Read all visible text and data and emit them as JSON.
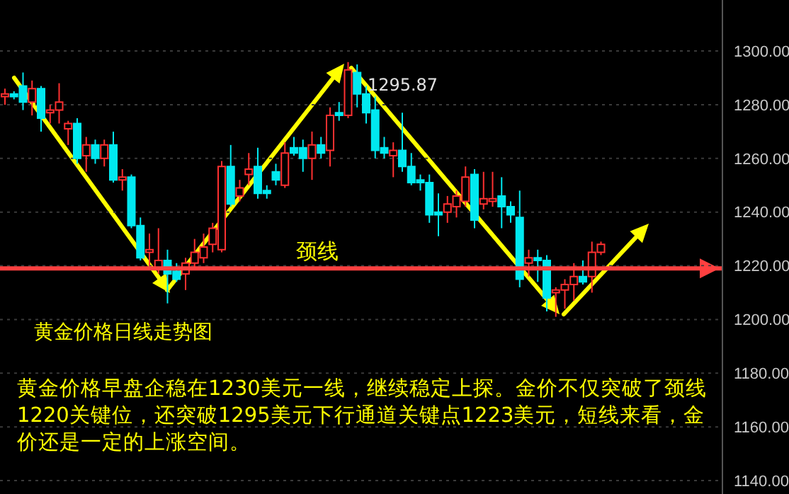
{
  "chart_data": {
    "type": "candlestick",
    "title": "黄金价格日线走势图",
    "annotations": [
      "1295.87",
      "黄金价格早盘企稳在1230美元一线，继续稳定上探。金价不仅突破了颈线1220关键位，还突破1295美元下行通道关键点1223美元，短线来看，金价还是一定的上涨空间。"
    ],
    "categories": [
      null,
      null,
      null,
      null,
      null,
      null,
      null,
      null,
      null,
      null,
      null,
      null,
      null,
      null,
      null,
      null,
      null,
      null,
      null,
      null,
      null,
      null,
      null,
      null,
      null,
      null,
      null,
      null,
      null,
      null,
      null,
      null,
      null,
      null,
      null,
      null,
      null,
      null,
      null,
      null,
      null,
      null,
      null,
      null,
      null,
      null,
      null,
      null,
      null,
      null,
      null,
      null,
      null,
      null,
      null,
      null,
      null,
      null,
      null,
      null,
      null,
      null,
      null,
      null,
      null,
      null,
      null,
      null,
      null,
      null,
      null,
      null,
      null,
      null,
      null,
      null,
      null,
      null,
      null,
      null
    ],
    "ohlc": [
      [
        1283,
        1286,
        1280,
        1284
      ],
      [
        1284,
        1285,
        1282,
        1283
      ],
      [
        1287,
        1292,
        1278,
        1281
      ],
      [
        1281,
        1289,
        1276,
        1286
      ],
      [
        1286,
        1287,
        1270,
        1275
      ],
      [
        1277,
        1280,
        1273,
        1278
      ],
      [
        1278,
        1288,
        1273,
        1281
      ],
      [
        1271,
        1274,
        1265,
        1273
      ],
      [
        1273,
        1275,
        1258,
        1260
      ],
      [
        1261,
        1268,
        1255,
        1265
      ],
      [
        1265,
        1267,
        1258,
        1260
      ],
      [
        1260,
        1267,
        1257,
        1265
      ],
      [
        1265,
        1270,
        1251,
        1252
      ],
      [
        1252,
        1256,
        1248,
        1253
      ],
      [
        1253,
        1254,
        1234,
        1235
      ],
      [
        1235,
        1238,
        1222,
        1223
      ],
      [
        1225,
        1232,
        1220,
        1226
      ],
      [
        1219,
        1234,
        1217,
        1222
      ],
      [
        1222,
        1226,
        1206,
        1217
      ],
      [
        1218,
        1221,
        1214,
        1215
      ],
      [
        1217,
        1223,
        1211,
        1221
      ],
      [
        1221,
        1230,
        1219,
        1225
      ],
      [
        1223,
        1232,
        1221,
        1227
      ],
      [
        1228,
        1236,
        1225,
        1234
      ],
      [
        1226,
        1259,
        1225,
        1257
      ],
      [
        1257,
        1265,
        1242,
        1243
      ],
      [
        1246,
        1252,
        1244,
        1249
      ],
      [
        1254,
        1262,
        1250,
        1256
      ],
      [
        1257,
        1264,
        1245,
        1247
      ],
      [
        1248,
        1250,
        1245,
        1247
      ],
      [
        1255,
        1258,
        1250,
        1252
      ],
      [
        1250,
        1266,
        1249,
        1262
      ],
      [
        1264,
        1268,
        1261,
        1262
      ],
      [
        1264,
        1267,
        1255,
        1260
      ],
      [
        1260,
        1270,
        1252,
        1265
      ],
      [
        1265,
        1268,
        1260,
        1262
      ],
      [
        1263,
        1279,
        1257,
        1276
      ],
      [
        1277,
        1281,
        1274,
        1276
      ],
      [
        1276,
        1295.87,
        1275,
        1293
      ],
      [
        1292,
        1295,
        1279,
        1284
      ],
      [
        1284,
        1287,
        1273,
        1277
      ],
      [
        1278,
        1283,
        1260,
        1263
      ],
      [
        1264,
        1268,
        1260,
        1262
      ],
      [
        1261,
        1266,
        1253,
        1263
      ],
      [
        1263,
        1277,
        1255,
        1257
      ],
      [
        1257,
        1262,
        1250,
        1251
      ],
      [
        1252,
        1254,
        1248,
        1251
      ],
      [
        1251,
        1254,
        1236,
        1239
      ],
      [
        1240,
        1247,
        1231,
        1239
      ],
      [
        1240,
        1246,
        1236,
        1243
      ],
      [
        1242,
        1248,
        1238,
        1246
      ],
      [
        1244,
        1257,
        1242,
        1253
      ],
      [
        1254,
        1256,
        1234,
        1237
      ],
      [
        1243,
        1255,
        1241,
        1245
      ],
      [
        1244,
        1255,
        1242,
        1245
      ],
      [
        1246,
        1253,
        1234,
        1242
      ],
      [
        1242,
        1244,
        1236,
        1239
      ],
      [
        1238,
        1248,
        1212,
        1215
      ],
      [
        1221,
        1226,
        1216,
        1223
      ],
      [
        1223,
        1226,
        1214,
        1222
      ],
      [
        1222,
        1224,
        1203,
        1208
      ],
      [
        1210,
        1212,
        1201,
        1211
      ],
      [
        1211,
        1215,
        1204,
        1213
      ],
      [
        1213,
        1221,
        1207,
        1216
      ],
      [
        1216,
        1222,
        1213,
        1214
      ],
      [
        1216,
        1229,
        1210,
        1225
      ],
      [
        1225,
        1229,
        1224,
        1228
      ],
      null,
      null,
      null,
      null,
      null,
      null,
      null,
      null,
      null,
      null,
      null,
      null,
      null
    ],
    "ylim": [
      1135,
      1319
    ],
    "yticks": [
      {
        "value": 1140,
        "label": "1140.00"
      },
      {
        "value": 1160,
        "label": "1160.00"
      },
      {
        "value": 1180,
        "label": "1180.00"
      },
      {
        "value": 1200,
        "label": "1200.00"
      },
      {
        "value": 1220,
        "label": "1220.00"
      },
      {
        "value": 1240,
        "label": "1240.00"
      },
      {
        "value": 1260,
        "label": "1260.00"
      },
      {
        "value": 1280,
        "label": "1280.00"
      },
      {
        "value": 1300,
        "label": "1300.00"
      }
    ],
    "grid": "y",
    "tick_labels": "y",
    "legend": false,
    "ref_lines": [
      {
        "axis": "y",
        "value": 1219,
        "label": "颈线",
        "color": "#ff4040"
      }
    ]
  }
}
